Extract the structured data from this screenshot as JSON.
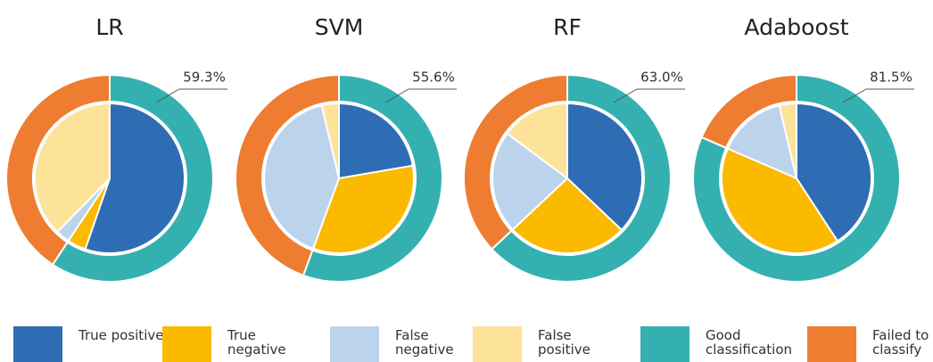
{
  "chart_data": [
    {
      "type": "donut",
      "title": "LR",
      "values": [
        55.3,
        4,
        3,
        37.7
      ],
      "outer_values": [
        59.3,
        40.7
      ],
      "outer_value_labels": [
        "59.3%",
        null
      ]
    },
    {
      "type": "donut",
      "title": "SVM",
      "values": [
        22.3,
        33.3,
        40.7,
        3.7
      ],
      "outer_values": [
        55.6,
        44.4
      ],
      "outer_value_labels": [
        "55.6%",
        null
      ]
    },
    {
      "type": "donut",
      "title": "RF",
      "values": [
        37.1,
        25.9,
        22.2,
        14.8
      ],
      "outer_values": [
        63.0,
        37.0
      ],
      "outer_value_labels": [
        "63.0%",
        null
      ]
    },
    {
      "type": "donut",
      "title": "Adaboost",
      "values": [
        40.8,
        40.7,
        14.8,
        3.7
      ],
      "outer_values": [
        81.5,
        18.5
      ],
      "outer_value_labels": [
        "81.5%",
        null
      ]
    }
  ],
  "legend": [
    {
      "label": "True positive",
      "color": "#2e6db4"
    },
    {
      "label": "True negative",
      "color": "#fbb900"
    },
    {
      "label": "False negative",
      "color": "#bcd3ec"
    },
    {
      "label": "False positive",
      "color": "#fde29a"
    },
    {
      "label": "Good classification",
      "color": "#35b0b0"
    },
    {
      "label": "Failed to classify",
      "color": "#ee7d31"
    }
  ]
}
